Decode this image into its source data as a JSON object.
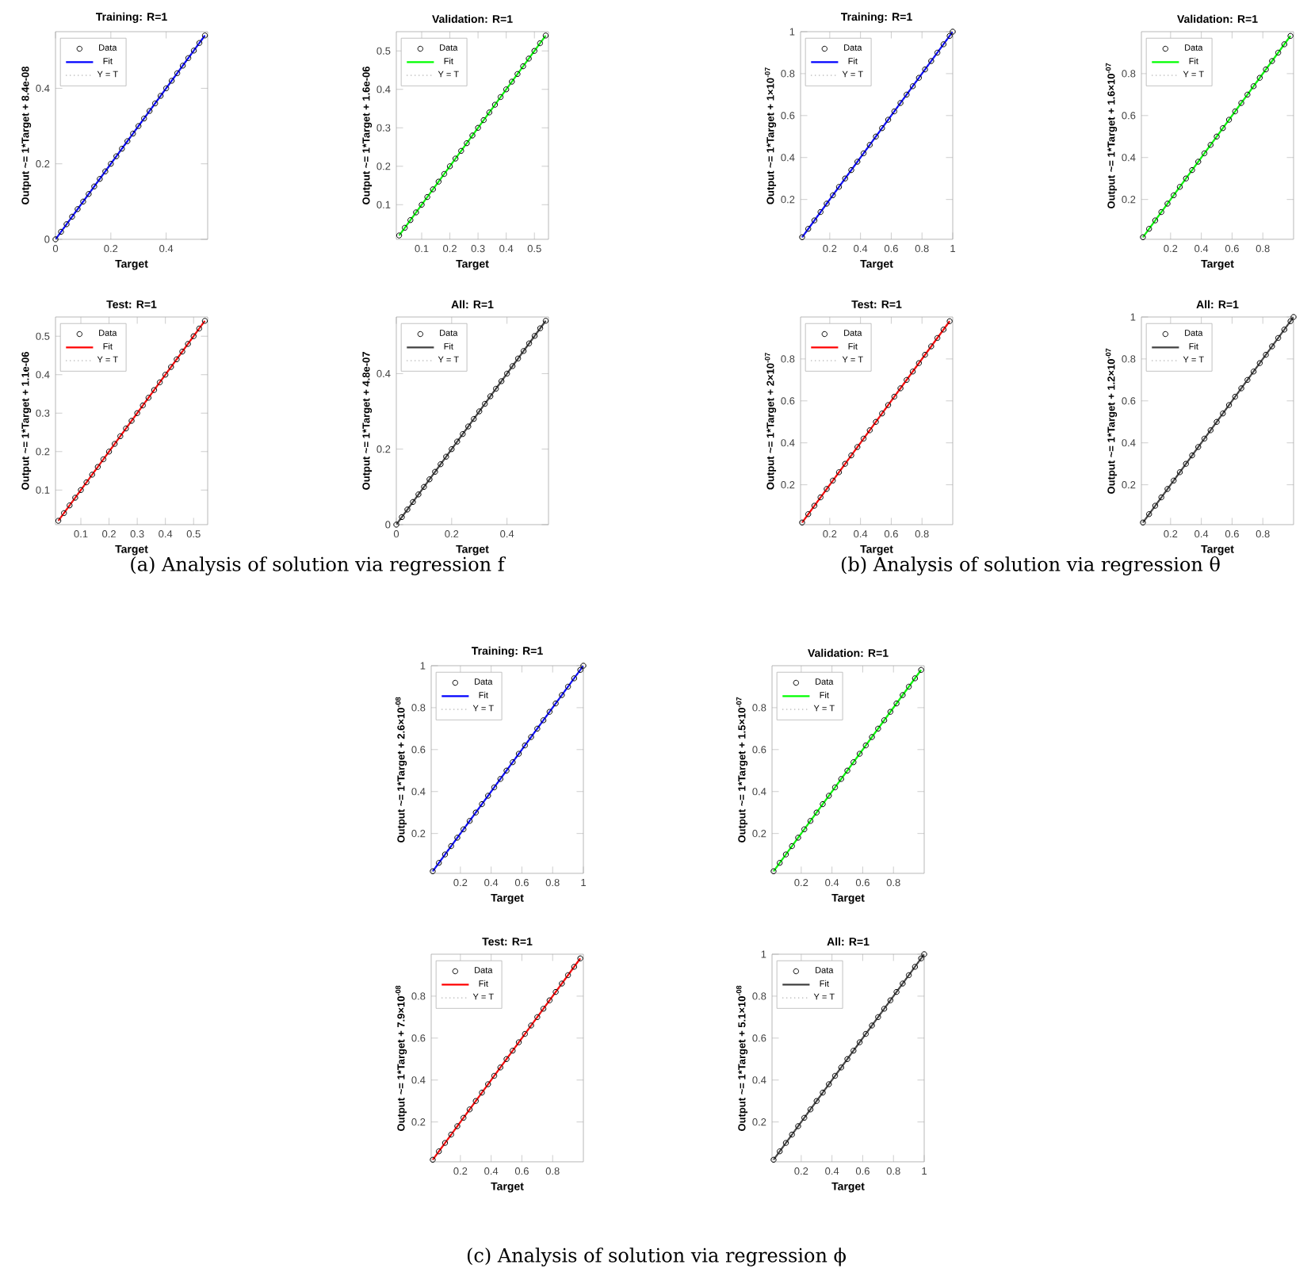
{
  "chart_data": [
    {
      "type": "scatter",
      "title": "Training: R=1",
      "xlabel": "Target",
      "ylabel": "Output ~= 1*Target + 8.4e-08",
      "xlim": [
        0,
        0.55
      ],
      "ylim": [
        0,
        0.55
      ],
      "xticks": [
        0,
        0.2,
        0.4
      ],
      "yticks": [
        0,
        0.2,
        0.4
      ],
      "legend": "top left",
      "series": [
        {
          "name": "Data",
          "type": "scatter",
          "marker": "circle",
          "color": "#000000",
          "x": [
            0,
            0.02,
            0.04,
            0.06,
            0.08,
            0.1,
            0.12,
            0.14,
            0.16,
            0.18,
            0.2,
            0.22,
            0.24,
            0.26,
            0.28,
            0.3,
            0.32,
            0.34,
            0.36,
            0.38,
            0.4,
            0.42,
            0.44,
            0.46,
            0.48,
            0.5,
            0.52,
            0.54
          ],
          "values": [
            0,
            0.02,
            0.04,
            0.06,
            0.08,
            0.1,
            0.12,
            0.14,
            0.16,
            0.18,
            0.2,
            0.22,
            0.24,
            0.26,
            0.28,
            0.3,
            0.32,
            0.34,
            0.36,
            0.38,
            0.4,
            0.42,
            0.44,
            0.46,
            0.48,
            0.5,
            0.52,
            0.54
          ]
        },
        {
          "name": "Fit",
          "type": "line",
          "color": "#0000ff",
          "x": [
            0,
            0.54
          ],
          "values": [
            0,
            0.54
          ]
        },
        {
          "name": "Y = T",
          "type": "line",
          "line_style": "dotted",
          "color": "#808080",
          "x": [
            0,
            0.54
          ],
          "values": [
            0,
            0.54
          ]
        }
      ]
    },
    {
      "type": "scatter",
      "title": "Validation: R=1",
      "xlabel": "Target",
      "ylabel": "Output ~= 1*Target + 1.6e-06",
      "xlim": [
        0.01,
        0.55
      ],
      "ylim": [
        0.01,
        0.55
      ],
      "xticks": [
        0.1,
        0.2,
        0.3,
        0.4,
        0.5
      ],
      "yticks": [
        0.1,
        0.2,
        0.3,
        0.4,
        0.5
      ],
      "legend": "top left",
      "series": [
        {
          "name": "Data",
          "type": "scatter",
          "marker": "circle",
          "color": "#000000",
          "x": [
            0.02,
            0.04,
            0.06,
            0.08,
            0.1,
            0.12,
            0.14,
            0.16,
            0.18,
            0.2,
            0.22,
            0.24,
            0.26,
            0.28,
            0.3,
            0.32,
            0.34,
            0.36,
            0.38,
            0.4,
            0.42,
            0.44,
            0.46,
            0.48,
            0.5,
            0.52,
            0.54
          ],
          "values": [
            0.02,
            0.04,
            0.06,
            0.08,
            0.1,
            0.12,
            0.14,
            0.16,
            0.18,
            0.2,
            0.22,
            0.24,
            0.26,
            0.28,
            0.3,
            0.32,
            0.34,
            0.36,
            0.38,
            0.4,
            0.42,
            0.44,
            0.46,
            0.48,
            0.5,
            0.52,
            0.54
          ]
        },
        {
          "name": "Fit",
          "type": "line",
          "color": "#00ff00",
          "x": [
            0.02,
            0.54
          ],
          "values": [
            0.02,
            0.54
          ]
        },
        {
          "name": "Y = T",
          "type": "line",
          "line_style": "dotted",
          "color": "#808080",
          "x": [
            0.02,
            0.54
          ],
          "values": [
            0.02,
            0.54
          ]
        }
      ]
    },
    {
      "type": "scatter",
      "title": "Test: R=1",
      "xlabel": "Target",
      "ylabel": "Output ~= 1*Target + 1.1e-06",
      "xlim": [
        0.01,
        0.55
      ],
      "ylim": [
        0.01,
        0.55
      ],
      "xticks": [
        0.1,
        0.2,
        0.3,
        0.4,
        0.5
      ],
      "yticks": [
        0.1,
        0.2,
        0.3,
        0.4,
        0.5
      ],
      "legend": "top left",
      "annotations": [
        "(a) Analysis of solution via regression f"
      ],
      "series": [
        {
          "name": "Data",
          "type": "scatter",
          "marker": "circle",
          "color": "#000000",
          "x": [
            0.02,
            0.04,
            0.06,
            0.08,
            0.1,
            0.12,
            0.14,
            0.16,
            0.18,
            0.2,
            0.22,
            0.24,
            0.26,
            0.28,
            0.3,
            0.32,
            0.34,
            0.36,
            0.38,
            0.4,
            0.42,
            0.44,
            0.46,
            0.48,
            0.5,
            0.52,
            0.54
          ],
          "values": [
            0.02,
            0.04,
            0.06,
            0.08,
            0.1,
            0.12,
            0.14,
            0.16,
            0.18,
            0.2,
            0.22,
            0.24,
            0.26,
            0.28,
            0.3,
            0.32,
            0.34,
            0.36,
            0.38,
            0.4,
            0.42,
            0.44,
            0.46,
            0.48,
            0.5,
            0.52,
            0.54
          ]
        },
        {
          "name": "Fit",
          "type": "line",
          "color": "#ff0000",
          "x": [
            0.02,
            0.54
          ],
          "values": [
            0.02,
            0.54
          ]
        },
        {
          "name": "Y = T",
          "type": "line",
          "line_style": "dotted",
          "color": "#808080",
          "x": [
            0.02,
            0.54
          ],
          "values": [
            0.02,
            0.54
          ]
        }
      ]
    },
    {
      "type": "scatter",
      "title": "All: R=1",
      "xlabel": "Target",
      "ylabel": "Output ~= 1*Target + 4.8e-07",
      "xlim": [
        0,
        0.55
      ],
      "ylim": [
        0,
        0.55
      ],
      "xticks": [
        0,
        0.2,
        0.4
      ],
      "yticks": [
        0,
        0.2,
        0.4
      ],
      "legend": "top left",
      "series": [
        {
          "name": "Data",
          "type": "scatter",
          "marker": "circle",
          "color": "#000000",
          "x": [
            0,
            0.02,
            0.04,
            0.06,
            0.08,
            0.1,
            0.12,
            0.14,
            0.16,
            0.18,
            0.2,
            0.22,
            0.24,
            0.26,
            0.28,
            0.3,
            0.32,
            0.34,
            0.36,
            0.38,
            0.4,
            0.42,
            0.44,
            0.46,
            0.48,
            0.5,
            0.52,
            0.54
          ],
          "values": [
            0,
            0.02,
            0.04,
            0.06,
            0.08,
            0.1,
            0.12,
            0.14,
            0.16,
            0.18,
            0.2,
            0.22,
            0.24,
            0.26,
            0.28,
            0.3,
            0.32,
            0.34,
            0.36,
            0.38,
            0.4,
            0.42,
            0.44,
            0.46,
            0.48,
            0.5,
            0.52,
            0.54
          ]
        },
        {
          "name": "Fit",
          "type": "line",
          "color": "#404040",
          "x": [
            0,
            0.54
          ],
          "values": [
            0,
            0.54
          ]
        },
        {
          "name": "Y = T",
          "type": "line",
          "line_style": "dotted",
          "color": "#808080",
          "x": [
            0,
            0.54
          ],
          "values": [
            0,
            0.54
          ]
        }
      ]
    },
    {
      "type": "scatter",
      "title": "Training: R=1",
      "xlabel": "Target",
      "ylabel": "Output ~= 1*Target + 1×10$^{-07}$",
      "xlim": [
        0.01,
        1
      ],
      "ylim": [
        0.01,
        1
      ],
      "xticks": [
        0.2,
        0.4,
        0.6,
        0.8,
        1
      ],
      "yticks": [
        0.2,
        0.4,
        0.6,
        0.8,
        1
      ],
      "legend": "top left",
      "series": [
        {
          "name": "Data",
          "type": "scatter",
          "marker": "circle",
          "color": "#000000",
          "x": [
            0.02,
            0.06,
            0.1,
            0.14,
            0.18,
            0.22,
            0.26,
            0.3,
            0.34,
            0.38,
            0.42,
            0.46,
            0.5,
            0.54,
            0.58,
            0.62,
            0.66,
            0.7,
            0.74,
            0.78,
            0.82,
            0.86,
            0.9,
            0.94,
            0.98,
            1
          ],
          "values": [
            0.02,
            0.06,
            0.1,
            0.14,
            0.18,
            0.22,
            0.26,
            0.3,
            0.34,
            0.38,
            0.42,
            0.46,
            0.5,
            0.54,
            0.58,
            0.62,
            0.66,
            0.7,
            0.74,
            0.78,
            0.82,
            0.86,
            0.9,
            0.94,
            0.98,
            1
          ]
        },
        {
          "name": "Fit",
          "type": "line",
          "color": "#0000ff",
          "x": [
            0.02,
            1
          ],
          "values": [
            0.02,
            1
          ]
        },
        {
          "name": "Y = T",
          "type": "line",
          "line_style": "dotted",
          "color": "#808080",
          "x": [
            0.02,
            1
          ],
          "values": [
            0.02,
            1
          ]
        }
      ]
    },
    {
      "type": "scatter",
      "title": "Validation: R=1",
      "xlabel": "Target",
      "ylabel": "Output ~= 1*Target + 1.6×10$^{-07}$",
      "xlim": [
        0.01,
        1
      ],
      "ylim": [
        0.01,
        1
      ],
      "xticks": [
        0.2,
        0.4,
        0.6,
        0.8
      ],
      "yticks": [
        0.2,
        0.4,
        0.6,
        0.8
      ],
      "legend": "top left",
      "series": [
        {
          "name": "Data",
          "type": "scatter",
          "marker": "circle",
          "color": "#000000",
          "x": [
            0.02,
            0.06,
            0.1,
            0.14,
            0.18,
            0.22,
            0.26,
            0.3,
            0.34,
            0.38,
            0.42,
            0.46,
            0.5,
            0.54,
            0.58,
            0.62,
            0.66,
            0.7,
            0.74,
            0.78,
            0.82,
            0.86,
            0.9,
            0.94,
            0.98
          ],
          "values": [
            0.02,
            0.06,
            0.1,
            0.14,
            0.18,
            0.22,
            0.26,
            0.3,
            0.34,
            0.38,
            0.42,
            0.46,
            0.5,
            0.54,
            0.58,
            0.62,
            0.66,
            0.7,
            0.74,
            0.78,
            0.82,
            0.86,
            0.9,
            0.94,
            0.98
          ]
        },
        {
          "name": "Fit",
          "type": "line",
          "color": "#00ff00",
          "x": [
            0.02,
            0.98
          ],
          "values": [
            0.02,
            0.98
          ]
        },
        {
          "name": "Y = T",
          "type": "line",
          "line_style": "dotted",
          "color": "#808080",
          "x": [
            0.02,
            0.98
          ],
          "values": [
            0.02,
            0.98
          ]
        }
      ]
    },
    {
      "type": "scatter",
      "title": "Test: R=1",
      "xlabel": "Target",
      "ylabel": "Output ~= 1*Target + 2×10$^{-07}$",
      "xlim": [
        0.01,
        1
      ],
      "ylim": [
        0.01,
        1
      ],
      "xticks": [
        0.2,
        0.4,
        0.6,
        0.8
      ],
      "yticks": [
        0.2,
        0.4,
        0.6,
        0.8
      ],
      "legend": "top left",
      "annotations": [
        "(b) Analysis of solution via regression θ"
      ],
      "series": [
        {
          "name": "Data",
          "type": "scatter",
          "marker": "circle",
          "color": "#000000",
          "x": [
            0.02,
            0.06,
            0.1,
            0.14,
            0.18,
            0.22,
            0.26,
            0.3,
            0.34,
            0.38,
            0.42,
            0.46,
            0.5,
            0.54,
            0.58,
            0.62,
            0.66,
            0.7,
            0.74,
            0.78,
            0.82,
            0.86,
            0.9,
            0.94,
            0.98
          ],
          "values": [
            0.02,
            0.06,
            0.1,
            0.14,
            0.18,
            0.22,
            0.26,
            0.3,
            0.34,
            0.38,
            0.42,
            0.46,
            0.5,
            0.54,
            0.58,
            0.62,
            0.66,
            0.7,
            0.74,
            0.78,
            0.82,
            0.86,
            0.9,
            0.94,
            0.98
          ]
        },
        {
          "name": "Fit",
          "type": "line",
          "color": "#ff0000",
          "x": [
            0.02,
            0.98
          ],
          "values": [
            0.02,
            0.98
          ]
        },
        {
          "name": "Y = T",
          "type": "line",
          "line_style": "dotted",
          "color": "#808080",
          "x": [
            0.02,
            0.98
          ],
          "values": [
            0.02,
            0.98
          ]
        }
      ]
    },
    {
      "type": "scatter",
      "title": "All: R=1",
      "xlabel": "Target",
      "ylabel": "Output ~= 1*Target + 1.2×10$^{-07}$",
      "xlim": [
        0.01,
        1
      ],
      "ylim": [
        0.01,
        1
      ],
      "xticks": [
        0.2,
        0.4,
        0.6,
        0.8
      ],
      "yticks": [
        0.2,
        0.4,
        0.6,
        0.8,
        1
      ],
      "legend": "top left",
      "series": [
        {
          "name": "Data",
          "type": "scatter",
          "marker": "circle",
          "color": "#000000",
          "x": [
            0.02,
            0.06,
            0.1,
            0.14,
            0.18,
            0.22,
            0.26,
            0.3,
            0.34,
            0.38,
            0.42,
            0.46,
            0.5,
            0.54,
            0.58,
            0.62,
            0.66,
            0.7,
            0.74,
            0.78,
            0.82,
            0.86,
            0.9,
            0.94,
            0.98,
            1
          ],
          "values": [
            0.02,
            0.06,
            0.1,
            0.14,
            0.18,
            0.22,
            0.26,
            0.3,
            0.34,
            0.38,
            0.42,
            0.46,
            0.5,
            0.54,
            0.58,
            0.62,
            0.66,
            0.7,
            0.74,
            0.78,
            0.82,
            0.86,
            0.9,
            0.94,
            0.98,
            1
          ]
        },
        {
          "name": "Fit",
          "type": "line",
          "color": "#404040",
          "x": [
            0.02,
            1
          ],
          "values": [
            0.02,
            1
          ]
        },
        {
          "name": "Y = T",
          "type": "line",
          "line_style": "dotted",
          "color": "#808080",
          "x": [
            0.02,
            1
          ],
          "values": [
            0.02,
            1
          ]
        }
      ]
    },
    {
      "type": "scatter",
      "title": "Training: R=1",
      "xlabel": "Target",
      "ylabel": "Output ~= 1*Target + 2.6×10$^{-08}$",
      "xlim": [
        0.01,
        1
      ],
      "ylim": [
        0.01,
        1
      ],
      "xticks": [
        0.2,
        0.4,
        0.6,
        0.8,
        1
      ],
      "yticks": [
        0.2,
        0.4,
        0.6,
        0.8,
        1
      ],
      "legend": "top left",
      "series": [
        {
          "name": "Data",
          "type": "scatter",
          "marker": "circle",
          "color": "#000000",
          "x": [
            0.02,
            0.06,
            0.1,
            0.14,
            0.18,
            0.22,
            0.26,
            0.3,
            0.34,
            0.38,
            0.42,
            0.46,
            0.5,
            0.54,
            0.58,
            0.62,
            0.66,
            0.7,
            0.74,
            0.78,
            0.82,
            0.86,
            0.9,
            0.94,
            0.98,
            1
          ],
          "values": [
            0.02,
            0.06,
            0.1,
            0.14,
            0.18,
            0.22,
            0.26,
            0.3,
            0.34,
            0.38,
            0.42,
            0.46,
            0.5,
            0.54,
            0.58,
            0.62,
            0.66,
            0.7,
            0.74,
            0.78,
            0.82,
            0.86,
            0.9,
            0.94,
            0.98,
            1
          ]
        },
        {
          "name": "Fit",
          "type": "line",
          "color": "#0000ff",
          "x": [
            0.02,
            1
          ],
          "values": [
            0.02,
            1
          ]
        },
        {
          "name": "Y = T",
          "type": "line",
          "line_style": "dotted",
          "color": "#808080",
          "x": [
            0.02,
            1
          ],
          "values": [
            0.02,
            1
          ]
        }
      ]
    },
    {
      "type": "scatter",
      "title": "Validation: R=1",
      "xlabel": "Target",
      "ylabel": "Output ~= 1*Target + 1.5×10$^{-07}$",
      "xlim": [
        0.01,
        1
      ],
      "ylim": [
        0.01,
        1
      ],
      "xticks": [
        0.2,
        0.4,
        0.6,
        0.8
      ],
      "yticks": [
        0.2,
        0.4,
        0.6,
        0.8
      ],
      "legend": "top left",
      "series": [
        {
          "name": "Data",
          "type": "scatter",
          "marker": "circle",
          "color": "#000000",
          "x": [
            0.02,
            0.06,
            0.1,
            0.14,
            0.18,
            0.22,
            0.26,
            0.3,
            0.34,
            0.38,
            0.42,
            0.46,
            0.5,
            0.54,
            0.58,
            0.62,
            0.66,
            0.7,
            0.74,
            0.78,
            0.82,
            0.86,
            0.9,
            0.94,
            0.98
          ],
          "values": [
            0.02,
            0.06,
            0.1,
            0.14,
            0.18,
            0.22,
            0.26,
            0.3,
            0.34,
            0.38,
            0.42,
            0.46,
            0.5,
            0.54,
            0.58,
            0.62,
            0.66,
            0.7,
            0.74,
            0.78,
            0.82,
            0.86,
            0.9,
            0.94,
            0.98
          ]
        },
        {
          "name": "Fit",
          "type": "line",
          "color": "#00ff00",
          "x": [
            0.02,
            0.98
          ],
          "values": [
            0.02,
            0.98
          ]
        },
        {
          "name": "Y = T",
          "type": "line",
          "line_style": "dotted",
          "color": "#808080",
          "x": [
            0.02,
            0.98
          ],
          "values": [
            0.02,
            0.98
          ]
        }
      ]
    },
    {
      "type": "scatter",
      "title": "Test: R=1",
      "xlabel": "Target",
      "ylabel": "Output ~= 1*Target + 7.9×10$^{-08}$",
      "xlim": [
        0.01,
        1
      ],
      "ylim": [
        0.01,
        1
      ],
      "xticks": [
        0.2,
        0.4,
        0.6,
        0.8
      ],
      "yticks": [
        0.2,
        0.4,
        0.6,
        0.8
      ],
      "legend": "top left",
      "annotations": [
        "(c) Analysis of solution via regression ϕ"
      ],
      "series": [
        {
          "name": "Data",
          "type": "scatter",
          "marker": "circle",
          "color": "#000000",
          "x": [
            0.02,
            0.06,
            0.1,
            0.14,
            0.18,
            0.22,
            0.26,
            0.3,
            0.34,
            0.38,
            0.42,
            0.46,
            0.5,
            0.54,
            0.58,
            0.62,
            0.66,
            0.7,
            0.74,
            0.78,
            0.82,
            0.86,
            0.9,
            0.94,
            0.98
          ],
          "values": [
            0.02,
            0.06,
            0.1,
            0.14,
            0.18,
            0.22,
            0.26,
            0.3,
            0.34,
            0.38,
            0.42,
            0.46,
            0.5,
            0.54,
            0.58,
            0.62,
            0.66,
            0.7,
            0.74,
            0.78,
            0.82,
            0.86,
            0.9,
            0.94,
            0.98
          ]
        },
        {
          "name": "Fit",
          "type": "line",
          "color": "#ff0000",
          "x": [
            0.02,
            0.98
          ],
          "values": [
            0.02,
            0.98
          ]
        },
        {
          "name": "Y = T",
          "type": "line",
          "line_style": "dotted",
          "color": "#808080",
          "x": [
            0.02,
            0.98
          ],
          "values": [
            0.02,
            0.98
          ]
        }
      ]
    },
    {
      "type": "scatter",
      "title": "All: R=1",
      "xlabel": "Target",
      "ylabel": "Output ~= 1*Target + 5.1×10$^{-08}$",
      "xlim": [
        0.01,
        1
      ],
      "ylim": [
        0.01,
        1
      ],
      "xticks": [
        0.2,
        0.4,
        0.6,
        0.8,
        1
      ],
      "yticks": [
        0.2,
        0.4,
        0.6,
        0.8,
        1
      ],
      "legend": "top left",
      "series": [
        {
          "name": "Data",
          "type": "scatter",
          "marker": "circle",
          "color": "#000000",
          "x": [
            0.02,
            0.06,
            0.1,
            0.14,
            0.18,
            0.22,
            0.26,
            0.3,
            0.34,
            0.38,
            0.42,
            0.46,
            0.5,
            0.54,
            0.58,
            0.62,
            0.66,
            0.7,
            0.74,
            0.78,
            0.82,
            0.86,
            0.9,
            0.94,
            0.98,
            1
          ],
          "values": [
            0.02,
            0.06,
            0.1,
            0.14,
            0.18,
            0.22,
            0.26,
            0.3,
            0.34,
            0.38,
            0.42,
            0.46,
            0.5,
            0.54,
            0.58,
            0.62,
            0.66,
            0.7,
            0.74,
            0.78,
            0.82,
            0.86,
            0.9,
            0.94,
            0.98,
            1
          ]
        },
        {
          "name": "Fit",
          "type": "line",
          "color": "#404040",
          "x": [
            0.02,
            1
          ],
          "values": [
            0.02,
            1
          ]
        },
        {
          "name": "Y = T",
          "type": "line",
          "line_style": "dotted",
          "color": "#808080",
          "x": [
            0.02,
            1
          ],
          "values": [
            0.02,
            1
          ]
        }
      ]
    }
  ]
}
